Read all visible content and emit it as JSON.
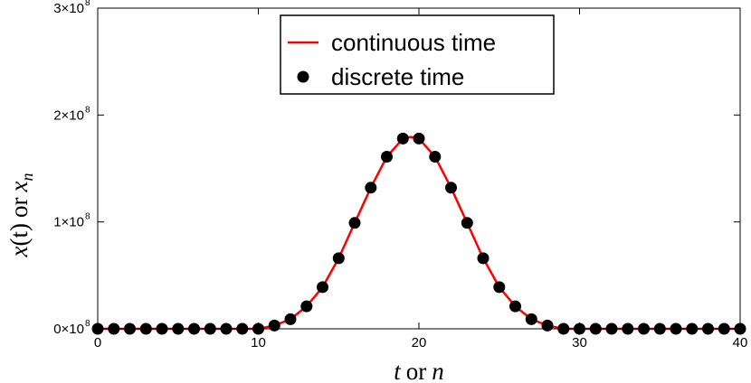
{
  "chart_data": {
    "type": "line",
    "xlabel": {
      "var1": "t",
      "conj": "or",
      "var2": "n"
    },
    "ylabel": {
      "var1": "x",
      "arg": "(t)",
      "conj": "or",
      "var2": "x",
      "sub": "n"
    },
    "xlim": [
      0,
      40
    ],
    "ylim": [
      0,
      300000000
    ],
    "x_ticks": [
      0,
      10,
      20,
      30,
      40
    ],
    "y_ticks": [
      {
        "value": 0,
        "mantissa": "0×10",
        "exp": "8"
      },
      {
        "value": 100000000,
        "mantissa": "1×10",
        "exp": "8"
      },
      {
        "value": 200000000,
        "mantissa": "2×10",
        "exp": "8"
      },
      {
        "value": 300000000,
        "mantissa": "3×10",
        "exp": "8"
      }
    ],
    "grid": false,
    "legend_position": "top-center",
    "series": [
      {
        "name": "continuous time",
        "style": "line",
        "color": "#ff0000",
        "x": [
          0,
          1,
          2,
          3,
          4,
          5,
          6,
          7,
          8,
          9,
          10,
          11,
          12,
          13,
          14,
          15,
          16,
          17,
          18,
          19,
          19.5,
          20,
          21,
          22,
          23,
          24,
          25,
          26,
          27,
          28,
          29,
          30,
          31,
          32,
          33,
          34,
          35,
          36,
          37,
          38,
          39,
          40
        ],
        "y": [
          0,
          0,
          0,
          0,
          0,
          0,
          0,
          0,
          0,
          0,
          0,
          3000000,
          9000000,
          21000000,
          39000000,
          66000000,
          99000000,
          132000000,
          161000000,
          178000000,
          179500000,
          178000000,
          161000000,
          132000000,
          99000000,
          66000000,
          39000000,
          21000000,
          9000000,
          3000000,
          0,
          0,
          0,
          0,
          0,
          0,
          0,
          0,
          0,
          0,
          0,
          0
        ]
      },
      {
        "name": "discrete time",
        "style": "markers",
        "color": "#000000",
        "x": [
          0,
          1,
          2,
          3,
          4,
          5,
          6,
          7,
          8,
          9,
          10,
          11,
          12,
          13,
          14,
          15,
          16,
          17,
          18,
          19,
          20,
          21,
          22,
          23,
          24,
          25,
          26,
          27,
          28,
          29,
          30,
          31,
          32,
          33,
          34,
          35,
          36,
          37,
          38,
          39,
          40
        ],
        "y": [
          0,
          0,
          0,
          0,
          0,
          0,
          0,
          0,
          0,
          0,
          0,
          3000000,
          9000000,
          21000000,
          39000000,
          66000000,
          99000000,
          132000000,
          161000000,
          178000000,
          178000000,
          161000000,
          132000000,
          99000000,
          66000000,
          39000000,
          21000000,
          9000000,
          3000000,
          0,
          0,
          0,
          0,
          0,
          0,
          0,
          0,
          0,
          0,
          0,
          0
        ]
      }
    ]
  }
}
